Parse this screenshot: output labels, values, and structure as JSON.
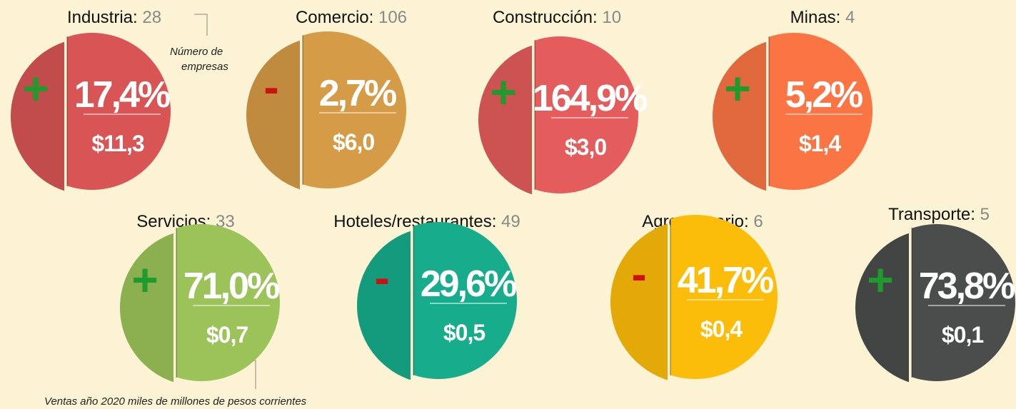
{
  "sectors": [
    {
      "name": "Industria:",
      "count": 28,
      "sign": "+",
      "change": "17,4%",
      "sales": "$11,3",
      "color": "#d95454"
    },
    {
      "name": "Comercio:",
      "count": 106,
      "sign": "-",
      "change": "2,7%",
      "sales": "$6,0",
      "color": "#d69b47"
    },
    {
      "name": "Construcción:",
      "count": 10,
      "sign": "+",
      "change": "164,9%",
      "sales": "$3,0",
      "color": "#e55c5c"
    },
    {
      "name": "Minas:",
      "count": 4,
      "sign": "+",
      "change": "5,2%",
      "sales": "$1,4",
      "color": "#fb7444"
    },
    {
      "name": "Servicios:",
      "count": 33,
      "sign": "+",
      "change": "71,0%",
      "sales": "$0,7",
      "color": "#9cc35a"
    },
    {
      "name": "Hoteles/restaurantes:",
      "count": 49,
      "sign": "-",
      "change": "29,6%",
      "sales": "$0,5",
      "color": "#17ad8c"
    },
    {
      "name": "Agropecuario:",
      "count": 6,
      "sign": "-",
      "change": "41,7%",
      "sales": "$0,4",
      "color": "#fcbd0a"
    },
    {
      "name": "Transporte:",
      "count": 5,
      "sign": "+",
      "change": "73,8%",
      "sales": "$0,1",
      "color": "#4a4d4c"
    }
  ],
  "annotations": {
    "count_note": [
      "Número de",
      "empresas"
    ],
    "sales_note": "Ventas año 2020 miles de millones de pesos corrientes"
  }
}
